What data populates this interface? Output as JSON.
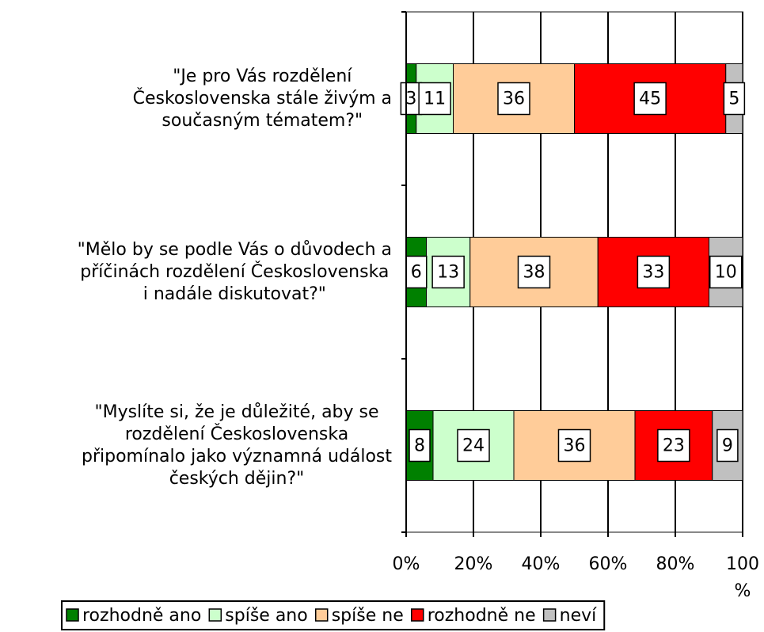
{
  "chart_data": {
    "type": "stacked-bar-horizontal",
    "categories": [
      "\"Je pro Vás rozdělení\nČeskoslovenska stále živým a\nsoučasným tématem?\"",
      "\"Mělo by se podle Vás o důvodech a\npříčinách rozdělení Československa\ni nadále diskutovat?\"",
      "\"Myslíte si, že je důležité, aby se\nrozdělení Československa\npřipomínalo jako významná událost\nčeských dějin?\""
    ],
    "series": [
      {
        "name": "rozhodně ano",
        "color": "#008000",
        "values": [
          3,
          6,
          8
        ]
      },
      {
        "name": "spíše ano",
        "color": "#ccffcc",
        "values": [
          11,
          13,
          24
        ]
      },
      {
        "name": "spíše ne",
        "color": "#ffcc99",
        "values": [
          36,
          38,
          36
        ]
      },
      {
        "name": "rozhodně ne",
        "color": "#ff0000",
        "values": [
          45,
          33,
          23
        ]
      },
      {
        "name": "neví",
        "color": "#c0c0c0",
        "values": [
          5,
          10,
          9
        ]
      }
    ],
    "xlim": [
      0,
      100
    ],
    "xticks": [
      {
        "value": 0,
        "label": "0%"
      },
      {
        "value": 20,
        "label": "20%"
      },
      {
        "value": 40,
        "label": "40%"
      },
      {
        "value": 60,
        "label": "60%"
      },
      {
        "value": 80,
        "label": "80%"
      },
      {
        "value": 100,
        "label": "100 %"
      }
    ],
    "grid": true,
    "legend": "bottom"
  }
}
